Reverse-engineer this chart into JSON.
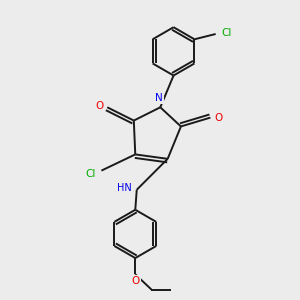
{
  "background_color": "#ececec",
  "bond_color": "#1a1a1a",
  "atom_colors": {
    "N": "#0000ee",
    "O": "#ee0000",
    "Cl": "#00aa00",
    "C": "#1a1a1a",
    "H": "#1a1a1a"
  },
  "figsize": [
    3.0,
    3.0
  ],
  "dpi": 100,
  "lw": 1.4,
  "fontsize": 7.5
}
